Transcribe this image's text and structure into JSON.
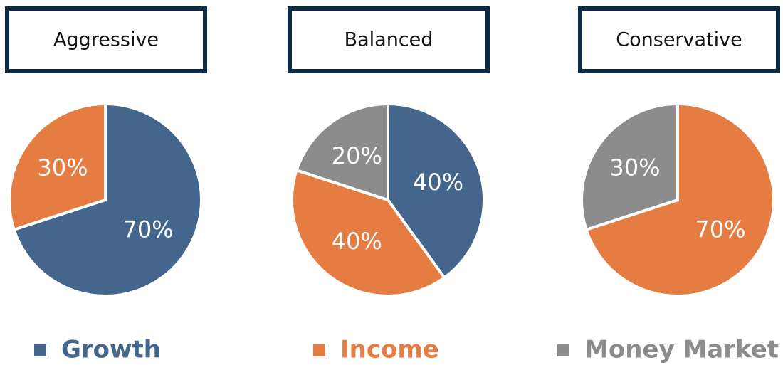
{
  "chart_data": [
    {
      "type": "pie",
      "title": "Aggressive",
      "values": [
        70,
        30
      ],
      "value_labels": [
        "70%",
        "30%"
      ],
      "colors": [
        "#44658c",
        "#e57c42"
      ]
    },
    {
      "type": "pie",
      "title": "Balanced",
      "values": [
        40,
        40,
        20
      ],
      "value_labels": [
        "40%",
        "40%",
        "20%"
      ],
      "colors": [
        "#44658c",
        "#e57c42",
        "#8c8c8c"
      ]
    },
    {
      "type": "pie",
      "title": "Conservative",
      "values": [
        70,
        30
      ],
      "value_labels": [
        "70%",
        "30%"
      ],
      "colors": [
        "#e57c42",
        "#8c8c8c"
      ]
    }
  ],
  "legend": [
    {
      "name": "Growth",
      "color": "#44658c"
    },
    {
      "name": "Income",
      "color": "#e57c42"
    },
    {
      "name": "Money Market",
      "color": "#8c8c8c"
    }
  ]
}
